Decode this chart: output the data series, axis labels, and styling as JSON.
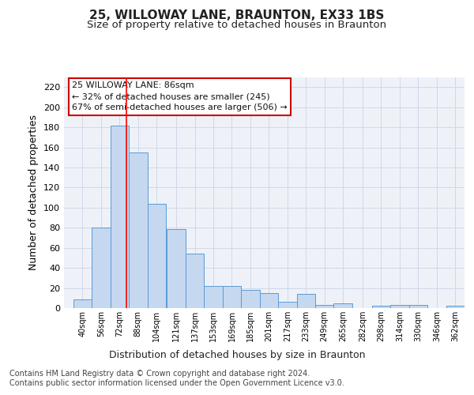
{
  "title1": "25, WILLOWAY LANE, BRAUNTON, EX33 1BS",
  "title2": "Size of property relative to detached houses in Braunton",
  "xlabel": "Distribution of detached houses by size in Braunton",
  "ylabel": "Number of detached properties",
  "footer1": "Contains HM Land Registry data © Crown copyright and database right 2024.",
  "footer2": "Contains public sector information licensed under the Open Government Licence v3.0.",
  "annotation_line1": "25 WILLOWAY LANE: 86sqm",
  "annotation_line2": "← 32% of detached houses are smaller (245)",
  "annotation_line3": "67% of semi-detached houses are larger (506) →",
  "bar_color": "#c5d8f0",
  "bar_edge_color": "#5b9bd5",
  "vline_color": "#ff0000",
  "vline_x": 86,
  "categories": [
    "40sqm",
    "56sqm",
    "72sqm",
    "88sqm",
    "104sqm",
    "121sqm",
    "137sqm",
    "153sqm",
    "169sqm",
    "185sqm",
    "201sqm",
    "217sqm",
    "233sqm",
    "249sqm",
    "265sqm",
    "282sqm",
    "298sqm",
    "314sqm",
    "330sqm",
    "346sqm",
    "362sqm"
  ],
  "bin_edges": [
    40,
    56,
    72,
    88,
    104,
    121,
    137,
    153,
    169,
    185,
    201,
    217,
    233,
    249,
    265,
    282,
    298,
    314,
    330,
    346,
    362
  ],
  "bin_width": 16,
  "values": [
    9,
    80,
    182,
    155,
    104,
    79,
    54,
    22,
    22,
    18,
    15,
    6,
    14,
    3,
    5,
    0,
    2,
    3,
    3,
    0,
    2
  ],
  "ylim": [
    0,
    230
  ],
  "yticks": [
    0,
    20,
    40,
    60,
    80,
    100,
    120,
    140,
    160,
    180,
    200,
    220
  ],
  "grid_color": "#d0d8e8",
  "background_color": "#eef2f8",
  "fig_background": "#ffffff",
  "title1_fontsize": 11,
  "title2_fontsize": 9.5,
  "xlabel_fontsize": 9,
  "ylabel_fontsize": 9,
  "footer_fontsize": 7,
  "annotation_fontsize": 8
}
